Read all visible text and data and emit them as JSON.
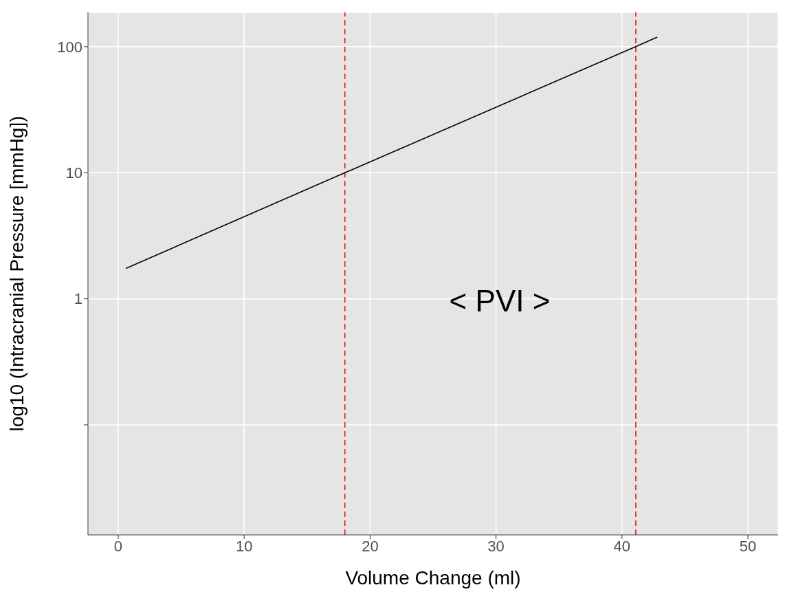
{
  "chart_data": {
    "type": "line",
    "xlabel": "Volume Change (ml)",
    "ylabel": "log10 (Intracranial Pressure [mmHg])",
    "series": [
      {
        "color": "#000000",
        "x": [
          0.6,
          18,
          41.1,
          42.8
        ],
        "values": [
          1.74,
          10,
          100,
          119
        ]
      }
    ],
    "xlim": [
      -2.4,
      52.4
    ],
    "xticks": [
      0,
      10,
      20,
      30,
      40,
      50
    ],
    "ylim": [
      0.0134,
      187
    ],
    "yticks": [
      {
        "value": 0.1,
        "label": null
      },
      1,
      10,
      100
    ],
    "log": "y",
    "grid": true,
    "legend": false,
    "marker": "none",
    "line_style": "solid",
    "ref_lines": [
      {
        "axis": "x",
        "value": 18,
        "color": "#e41a1c",
        "line_style": "dashed"
      },
      {
        "axis": "x",
        "value": 41.1,
        "color": "#e41a1c",
        "line_style": "dashed"
      }
    ],
    "annotations": [
      "< PVI >"
    ]
  }
}
